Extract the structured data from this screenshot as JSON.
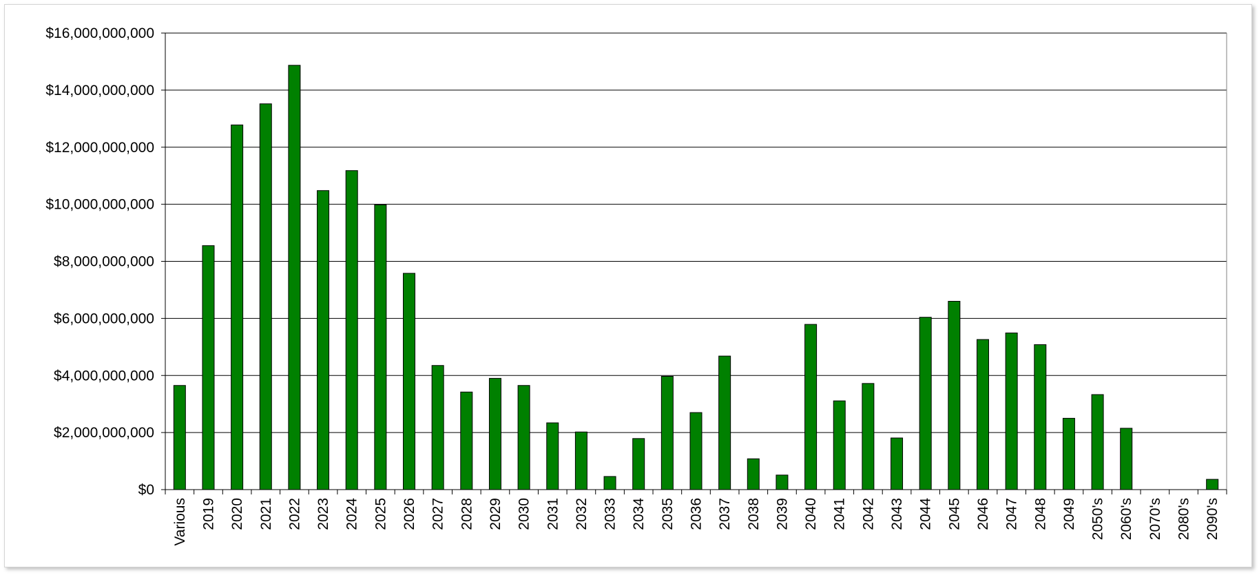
{
  "chart_data": {
    "type": "bar",
    "title": "",
    "xlabel": "",
    "ylabel": "",
    "categories": [
      "Various",
      "2019",
      "2020",
      "2021",
      "2022",
      "2023",
      "2024",
      "2025",
      "2026",
      "2027",
      "2028",
      "2029",
      "2030",
      "2031",
      "2032",
      "2033",
      "2034",
      "2035",
      "2036",
      "2037",
      "2038",
      "2039",
      "2040",
      "2041",
      "2042",
      "2043",
      "2044",
      "2045",
      "2046",
      "2047",
      "2048",
      "2049",
      "2050's",
      "2060's",
      "2070's",
      "2080's",
      "2090's"
    ],
    "values": [
      3650000000,
      8550000000,
      12780000000,
      13520000000,
      14870000000,
      10480000000,
      11180000000,
      9980000000,
      7580000000,
      4350000000,
      3420000000,
      3900000000,
      3650000000,
      2340000000,
      2020000000,
      460000000,
      1790000000,
      3970000000,
      2700000000,
      4680000000,
      1080000000,
      510000000,
      5790000000,
      3110000000,
      3720000000,
      1810000000,
      6040000000,
      6600000000,
      5260000000,
      5490000000,
      5080000000,
      2500000000,
      3330000000,
      2150000000,
      0,
      0,
      360000000
    ],
    "ylim": [
      0,
      16000000000
    ],
    "y_ticks": [
      "$0",
      "$2,000,000,000",
      "$4,000,000,000",
      "$6,000,000,000",
      "$8,000,000,000",
      "$10,000,000,000",
      "$12,000,000,000",
      "$14,000,000,000",
      "$16,000,000,000"
    ],
    "grid": true,
    "legend": "none",
    "colors": {
      "bar_fill": "#008000",
      "bar_stroke": "#000000",
      "grid": "#000000",
      "axis": "#000000"
    }
  }
}
